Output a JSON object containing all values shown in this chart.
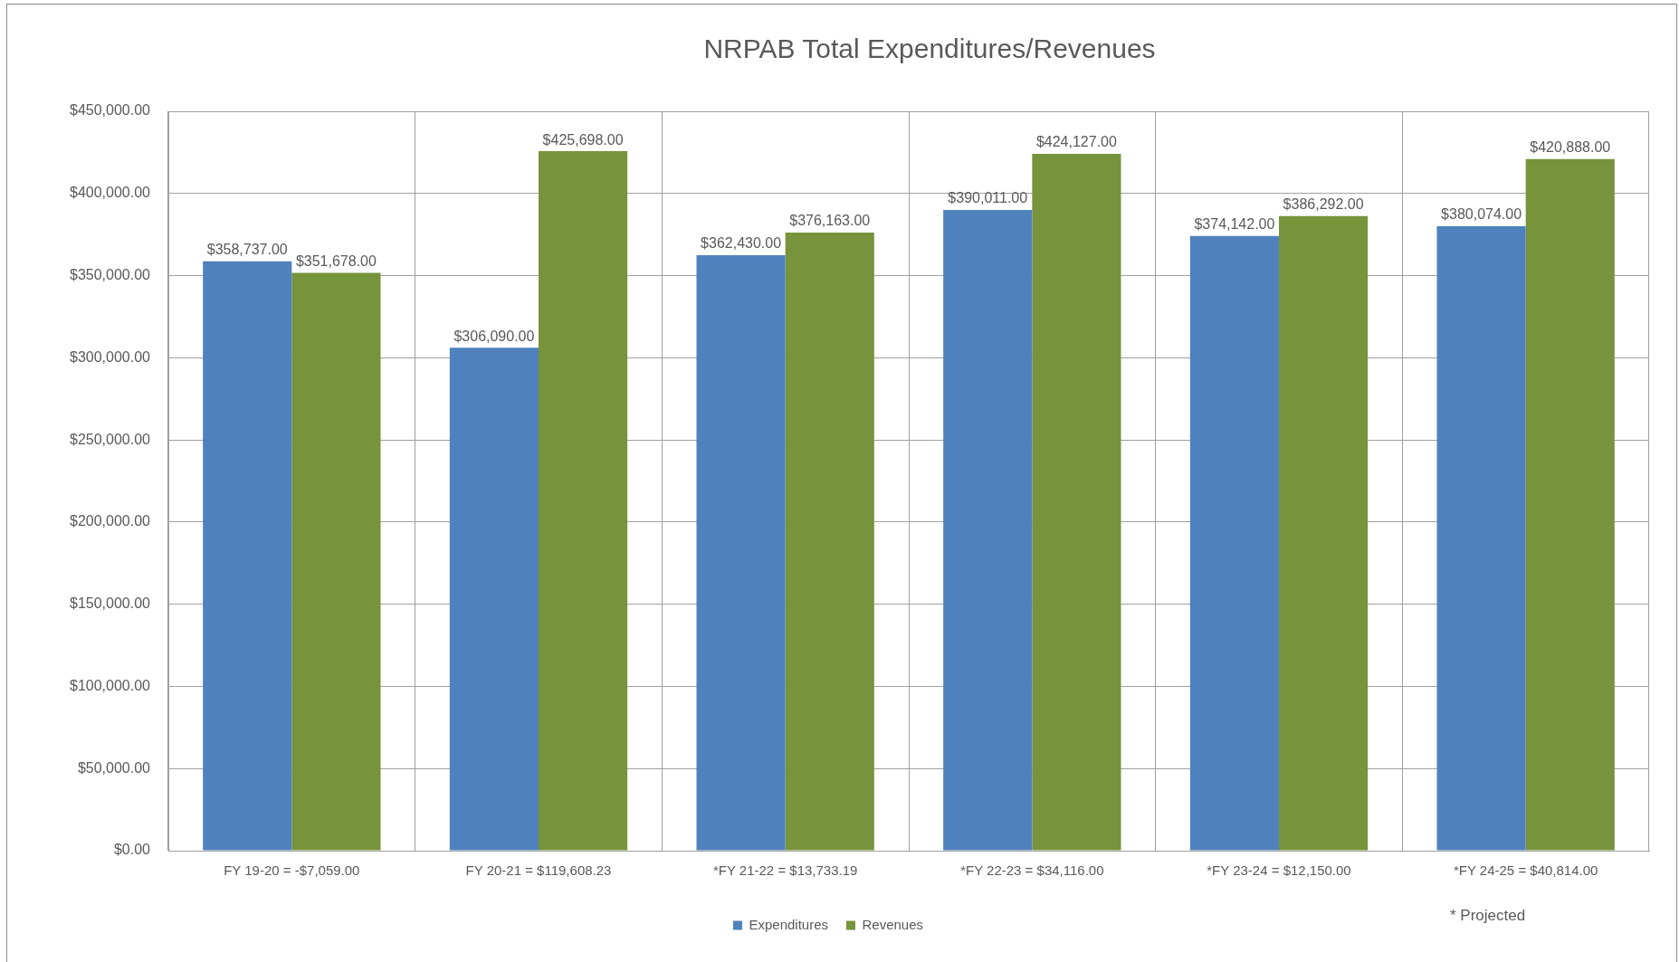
{
  "chart_data": {
    "type": "bar",
    "title": "NRPAB Total Expenditures/Revenues",
    "categories": [
      "FY 19-20 = -$7,059.00",
      "FY 20-21 = $119,608.23",
      "*FY 21-22 = $13,733.19",
      "*FY 22-23 = $34,116.00",
      "*FY 23-24 = $12,150.00",
      "*FY 24-25 = $40,814.00"
    ],
    "series": [
      {
        "name": "Expenditures",
        "color": "#4f81bd",
        "values": [
          358737,
          306090,
          362430,
          390011,
          374142,
          380074
        ],
        "value_labels": [
          "$358,737.00",
          "$306,090.00",
          "$362,430.00",
          "$390,011.00",
          "$374,142.00",
          "$380,074.00"
        ]
      },
      {
        "name": "Revenues",
        "color": "#77933c",
        "values": [
          351678,
          425698,
          376163,
          424127,
          386292,
          420888
        ],
        "value_labels": [
          "$351,678.00",
          "$425,698.00",
          "$376,163.00",
          "$424,127.00",
          "$386,292.00",
          "$420,888.00"
        ]
      }
    ],
    "ylim": [
      0,
      450000
    ],
    "yticks": [
      {
        "value": 0,
        "label": "$0.00"
      },
      {
        "value": 50000,
        "label": "$50,000.00"
      },
      {
        "value": 100000,
        "label": "$100,000.00"
      },
      {
        "value": 150000,
        "label": "$150,000.00"
      },
      {
        "value": 200000,
        "label": "$200,000.00"
      },
      {
        "value": 250000,
        "label": "$250,000.00"
      },
      {
        "value": 300000,
        "label": "$300,000.00"
      },
      {
        "value": 350000,
        "label": "$350,000.00"
      },
      {
        "value": 400000,
        "label": "$400,000.00"
      },
      {
        "value": 450000,
        "label": "$450,000.00"
      }
    ],
    "grid": true,
    "legend": "bottom",
    "annotations": [
      "* Projected"
    ]
  }
}
